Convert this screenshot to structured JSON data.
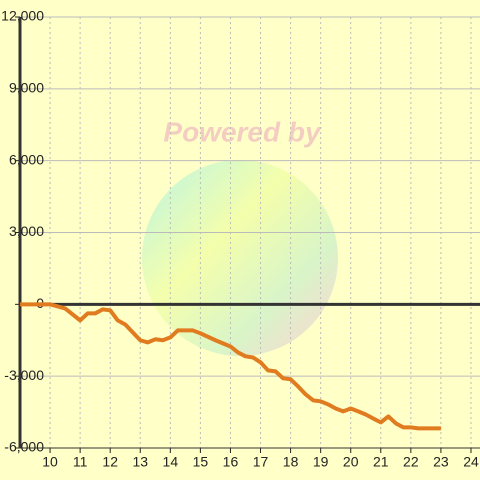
{
  "chart_data": {
    "type": "line",
    "watermark": "Powered by",
    "xlim": [
      9,
      24.3
    ],
    "ylim": [
      -6000,
      12000
    ],
    "xticks": [
      10,
      11,
      12,
      13,
      14,
      15,
      16,
      17,
      18,
      19,
      20,
      21,
      22,
      23,
      24
    ],
    "yticks": [
      {
        "value": -6000,
        "label": "-6,000"
      },
      {
        "value": -3000,
        "label": "-3,000"
      },
      0,
      {
        "value": 3000,
        "label": "3,000"
      },
      {
        "value": 6000,
        "label": "6,000"
      },
      {
        "value": 9000,
        "label": "9,000"
      },
      {
        "value": 12000,
        "label": "12,000"
      }
    ],
    "grid": true,
    "series": [
      {
        "color": "#e07b20",
        "x": [
          9,
          10,
          10.5,
          11,
          11.25,
          11.5,
          11.75,
          12,
          12.25,
          12.5,
          12.75,
          13,
          13.25,
          13.5,
          13.75,
          14,
          14.25,
          14.5,
          14.75,
          15,
          15.5,
          16,
          16.25,
          16.5,
          16.75,
          17,
          17.25,
          17.5,
          17.75,
          18,
          18.25,
          18.5,
          18.75,
          19,
          19.25,
          19.5,
          19.75,
          20,
          20.25,
          20.5,
          20.75,
          21,
          21.25,
          21.5,
          21.75,
          22,
          22.25,
          23
        ],
        "values": [
          0,
          0,
          -170,
          -670,
          -380,
          -380,
          -210,
          -250,
          -670,
          -840,
          -1170,
          -1500,
          -1590,
          -1460,
          -1500,
          -1380,
          -1090,
          -1090,
          -1090,
          -1210,
          -1500,
          -1760,
          -2010,
          -2170,
          -2220,
          -2420,
          -2760,
          -2800,
          -3090,
          -3130,
          -3430,
          -3760,
          -4010,
          -4050,
          -4180,
          -4350,
          -4470,
          -4350,
          -4470,
          -4600,
          -4770,
          -4930,
          -4680,
          -4970,
          -5140,
          -5140,
          -5180,
          -5180
        ]
      }
    ]
  }
}
